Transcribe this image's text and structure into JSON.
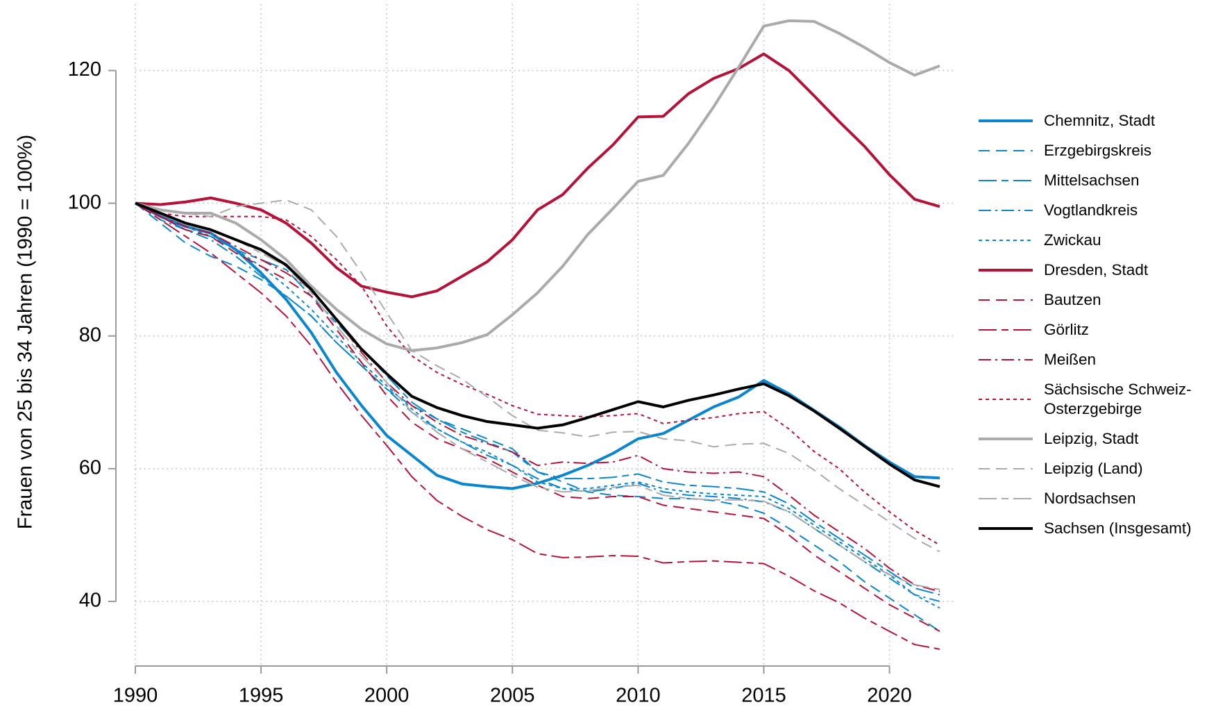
{
  "chart_data": {
    "type": "line",
    "y_label": "Frauen von 25 bis 34 Jahren (1990 = 100%)",
    "x": [
      1990,
      1991,
      1992,
      1993,
      1994,
      1995,
      1996,
      1997,
      1998,
      1999,
      2000,
      2001,
      2002,
      2003,
      2004,
      2005,
      2006,
      2007,
      2008,
      2009,
      2010,
      2011,
      2012,
      2013,
      2014,
      2015,
      2016,
      2017,
      2018,
      2019,
      2020,
      2021,
      2022
    ],
    "xlim": [
      1990,
      2022
    ],
    "xticks": [
      1990,
      1995,
      2000,
      2005,
      2010,
      2015,
      2020
    ],
    "ylim": [
      30,
      130
    ],
    "yticks": [
      40,
      60,
      80,
      100,
      120
    ],
    "grid": true,
    "legend": "right",
    "series": [
      {
        "name": "Chemnitz, Stadt",
        "color": "#0a86cc",
        "dash": "solid",
        "width": 4,
        "values": [
          100,
          98,
          96.5,
          95.5,
          93,
          89.5,
          85.5,
          80.5,
          74.5,
          69.5,
          65,
          62,
          59,
          57.7,
          57.3,
          57,
          57.8,
          59,
          60.5,
          62.3,
          64.5,
          65.3,
          67.3,
          69.3,
          70.8,
          73.3,
          71.3,
          68.8,
          66.3,
          63.5,
          61,
          58.8,
          58.6
        ]
      },
      {
        "name": "Erzgebirgskreis",
        "color": "#0a86cc",
        "dash": "dashed",
        "width": 2,
        "values": [
          100,
          97,
          94,
          92,
          90.5,
          88.5,
          86,
          83,
          79,
          75.5,
          72,
          69.5,
          67.5,
          66,
          64.5,
          63,
          59.5,
          58,
          56.5,
          56,
          55.8,
          55.5,
          55.5,
          55.2,
          54.5,
          53.3,
          51,
          48.5,
          46,
          43,
          40.5,
          38,
          35.5
        ]
      },
      {
        "name": "Mittelsachsen",
        "color": "#0a86cc",
        "dash": "longdash",
        "width": 2,
        "values": [
          100,
          98,
          96,
          95,
          93,
          91.5,
          90,
          86,
          82,
          78,
          74,
          70,
          67.5,
          65.5,
          64,
          62.5,
          59.5,
          58.5,
          58.5,
          58.7,
          59.2,
          58,
          57.5,
          57.3,
          57,
          56.5,
          54.7,
          52,
          49.5,
          47,
          44.5,
          42,
          41
        ]
      },
      {
        "name": "Vogtlandkreis",
        "color": "#0a86cc",
        "dash": "dashdot",
        "width": 2,
        "values": [
          100,
          97.5,
          96,
          94.5,
          92,
          89,
          86,
          83,
          79,
          75.5,
          72,
          68.5,
          66,
          64,
          62,
          60.5,
          58.5,
          57,
          56.5,
          57,
          57.8,
          56.5,
          56,
          55.8,
          55.5,
          55,
          53.5,
          51,
          48.5,
          46,
          43.5,
          41,
          40
        ]
      },
      {
        "name": "Zwickau",
        "color": "#0a86cc",
        "dash": "dotted",
        "width": 2,
        "values": [
          100,
          98,
          96.5,
          95,
          93,
          90.5,
          87.5,
          84,
          80,
          76,
          72.5,
          69,
          66,
          64,
          62.5,
          60.5,
          58,
          57,
          57,
          57.5,
          58,
          57,
          56.5,
          56.2,
          56,
          55.8,
          54,
          51.5,
          49,
          46.5,
          44,
          41,
          39
        ]
      },
      {
        "name": "Dresden, Stadt",
        "color": "#b5123a",
        "dash": "solid",
        "width": 4,
        "values": [
          100,
          99.8,
          100.2,
          100.8,
          100,
          99,
          97,
          94,
          90.3,
          87.5,
          86.6,
          85.9,
          86.8,
          89,
          91.2,
          94.5,
          99,
          101.3,
          105.3,
          108.8,
          113,
          113.1,
          116.5,
          118.8,
          120.3,
          122.5,
          120,
          116.2,
          112.3,
          108.6,
          104.3,
          100.6,
          99.5
        ]
      },
      {
        "name": "Bautzen",
        "color": "#b5123a",
        "dash": "dashed",
        "width": 2,
        "values": [
          100,
          98,
          96,
          95,
          92.5,
          90.5,
          88.5,
          86,
          81,
          76,
          71,
          67,
          64.5,
          63,
          61.5,
          59.5,
          57.5,
          55.8,
          55.5,
          55.8,
          55.8,
          54.5,
          54,
          53.5,
          53,
          52.5,
          50,
          47,
          44.5,
          42,
          39.5,
          37.5,
          35.5
        ]
      },
      {
        "name": "Görlitz",
        "color": "#b5123a",
        "dash": "longdash",
        "width": 2,
        "values": [
          100,
          97.5,
          95,
          92.5,
          89.5,
          86.5,
          83,
          78.5,
          73,
          68,
          63.5,
          58.8,
          55.2,
          52.8,
          50.8,
          49.3,
          47.2,
          46.6,
          46.7,
          46.9,
          46.8,
          45.8,
          46,
          46.1,
          45.9,
          45.7,
          43.8,
          41.6,
          39.8,
          37.5,
          35.5,
          33.5,
          32.8
        ]
      },
      {
        "name": "Meißen",
        "color": "#b5123a",
        "dash": "dashdot",
        "width": 2,
        "values": [
          100,
          98,
          96.5,
          95.5,
          93.5,
          91.5,
          89.5,
          87,
          82.5,
          77.5,
          73,
          69.5,
          67,
          65,
          63.8,
          62.5,
          60.5,
          61,
          60.8,
          61,
          62,
          60,
          59.5,
          59.3,
          59.5,
          58.8,
          56,
          53,
          50.5,
          48,
          45,
          42.5,
          41.5
        ]
      },
      {
        "name": "Sächsische Schweiz-Osterzgebirge",
        "color": "#b5123a",
        "dash": "dotted",
        "width": 2,
        "values": [
          100,
          98.5,
          98,
          98,
          98,
          98,
          97.5,
          95,
          91.5,
          87.5,
          81.5,
          77,
          74.5,
          72.7,
          71.2,
          69.5,
          68.2,
          68,
          67.8,
          68,
          68.3,
          66.8,
          67.3,
          67.7,
          68.3,
          68.6,
          66,
          62.6,
          60,
          56.5,
          53.5,
          50.7,
          48.5
        ]
      },
      {
        "name": "Leipzig, Stadt",
        "color": "#aaaaaa",
        "dash": "solid",
        "width": 4,
        "values": [
          100,
          99,
          98.5,
          98.5,
          97,
          94.5,
          91.5,
          87.5,
          84,
          81,
          78.8,
          77.8,
          78.2,
          79,
          80.2,
          83.2,
          86.5,
          90.5,
          95.3,
          99.2,
          103.3,
          104.2,
          109,
          114.5,
          120.5,
          126.7,
          127.5,
          127.4,
          125.6,
          123.5,
          121.2,
          119.3,
          120.7
        ]
      },
      {
        "name": "Leipzig (Land)",
        "color": "#aaaaaa",
        "dash": "dashed",
        "width": 2,
        "values": [
          100,
          99,
          98.5,
          98,
          99.5,
          100,
          100.5,
          99,
          95,
          89.5,
          83.5,
          77.8,
          75.5,
          73.5,
          70.8,
          68,
          65.8,
          65.4,
          64.8,
          65.5,
          65.6,
          64.5,
          64.2,
          63.3,
          63.7,
          63.8,
          62.3,
          59.8,
          57,
          54.5,
          52,
          49.5,
          47.5
        ]
      },
      {
        "name": "Nordsachsen",
        "color": "#aaaaaa",
        "dash": "longdash",
        "width": 2,
        "values": [
          100,
          98.5,
          97,
          96,
          94.5,
          92.5,
          90.5,
          86.5,
          81.5,
          77,
          73,
          68.5,
          65.5,
          63,
          61,
          59,
          57.2,
          56.5,
          56.7,
          57.2,
          57.5,
          56,
          55.5,
          55.3,
          55.3,
          55.1,
          53.5,
          51,
          48.5,
          46,
          44,
          42.5,
          41.8
        ]
      },
      {
        "name": "Sachsen (Insgesamt)",
        "color": "#000000",
        "dash": "solid",
        "width": 4,
        "values": [
          100,
          98.5,
          97,
          96,
          94.5,
          93,
          90.7,
          87,
          82.5,
          78,
          74.3,
          70.9,
          69.2,
          68,
          67.1,
          66.6,
          66.1,
          66.6,
          67.7,
          68.9,
          70.1,
          69.3,
          70.3,
          71.1,
          72,
          72.8,
          71,
          68.7,
          66.1,
          63.4,
          60.7,
          58.3,
          57.3
        ]
      }
    ]
  }
}
